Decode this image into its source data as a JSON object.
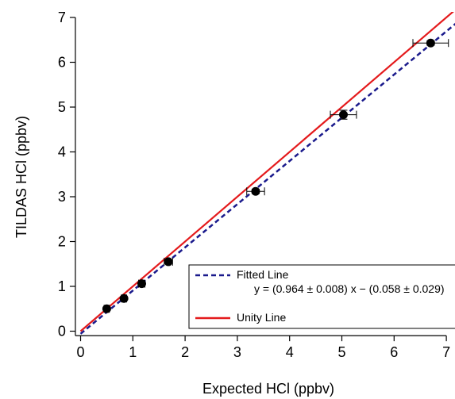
{
  "chart_data": {
    "type": "scatter",
    "xlabel": "Expected HCl (ppbv)",
    "ylabel": "TILDAS HCl (ppbv)",
    "xlim": [
      -0.1,
      7.0
    ],
    "ylim": [
      -0.1,
      7.0
    ],
    "xticks": [
      "0",
      "1",
      "2",
      "3",
      "4",
      "5",
      "6",
      "7"
    ],
    "yticks": [
      "0",
      "1",
      "2",
      "3",
      "4",
      "5",
      "6",
      "7"
    ],
    "grid": false,
    "legend_position": "bottom-right",
    "series": [
      {
        "name": "",
        "kind": "points",
        "color": "#000000",
        "x": [
          0.5,
          0.83,
          1.17,
          1.68,
          3.35,
          5.03,
          6.7
        ],
        "y": [
          0.5,
          0.73,
          1.06,
          1.55,
          3.12,
          4.83,
          6.43
        ],
        "x_err": [
          0.05,
          0.05,
          0.06,
          0.08,
          0.17,
          0.25,
          0.34
        ],
        "y_err": [
          0.02,
          0.02,
          0.02,
          0.02,
          0.05,
          0.1,
          0.05
        ]
      },
      {
        "name": "Fitted Line",
        "kind": "line",
        "style": "dashed",
        "color": "#1a1a8c",
        "equation": "y = (0.964 ± 0.008) x − (0.058 ± 0.029)",
        "slope": 0.964,
        "intercept": -0.058
      },
      {
        "name": "Unity Line",
        "kind": "line",
        "style": "solid",
        "color": "#e41a1c",
        "slope": 1,
        "intercept": 0
      }
    ]
  }
}
